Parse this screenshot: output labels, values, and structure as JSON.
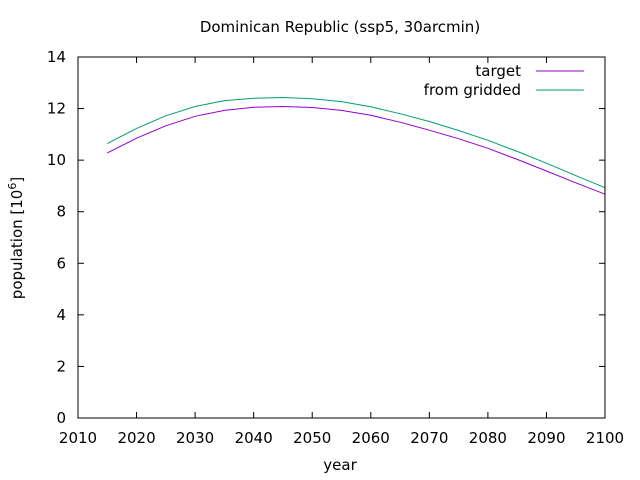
{
  "chart_data": {
    "type": "line",
    "title": "Dominican Republic (ssp5, 30arcmin)",
    "xlabel": "year",
    "ylabel_text": "population [10",
    "ylabel_exp": "6",
    "ylabel_close": "]",
    "xlim": [
      2010,
      2100
    ],
    "ylim": [
      0,
      14
    ],
    "x_ticks": [
      2010,
      2020,
      2030,
      2040,
      2050,
      2060,
      2070,
      2080,
      2090,
      2100
    ],
    "y_ticks": [
      0,
      2,
      4,
      6,
      8,
      10,
      12,
      14
    ],
    "grid": false,
    "legend_position": "top-right",
    "x": [
      2015,
      2020,
      2025,
      2030,
      2035,
      2040,
      2045,
      2050,
      2055,
      2060,
      2065,
      2070,
      2075,
      2080,
      2085,
      2090,
      2095,
      2100
    ],
    "series": [
      {
        "name": "target",
        "color": "#9400d3",
        "values": [
          10.28,
          10.85,
          11.33,
          11.7,
          11.93,
          12.05,
          12.08,
          12.04,
          11.93,
          11.74,
          11.47,
          11.16,
          10.83,
          10.46,
          10.03,
          9.58,
          9.12,
          8.68
        ]
      },
      {
        "name": "from gridded",
        "color": "#009e73",
        "values": [
          10.64,
          11.23,
          11.72,
          12.08,
          12.31,
          12.4,
          12.43,
          12.38,
          12.27,
          12.07,
          11.8,
          11.5,
          11.15,
          10.77,
          10.34,
          9.88,
          9.4,
          8.93
        ]
      }
    ]
  }
}
